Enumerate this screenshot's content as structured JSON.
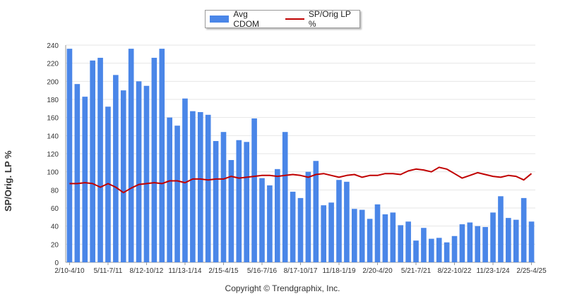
{
  "colors": {
    "bars": "#4a86e8",
    "line": "#c00000",
    "grid": "#e6e6e6",
    "axis": "#9a9a9a"
  },
  "legend": {
    "bar_label": "Avg CDOM",
    "line_label": "SP/Orig LP %"
  },
  "copyright": "Copyright © Trendgraphix, Inc.",
  "chart_data": {
    "type": "bar",
    "title": "",
    "ylabel": "SP/Orig. LP %",
    "xlabel": "",
    "ylim": [
      0,
      240
    ],
    "yticks": [
      0,
      20,
      40,
      60,
      80,
      100,
      120,
      140,
      160,
      180,
      200,
      220,
      240
    ],
    "grid": true,
    "legend_position": "top-center",
    "x_tick_labels": [
      "2/10-4/10",
      "5/11-7/11",
      "8/12-10/12",
      "11/13-1/14",
      "2/15-4/15",
      "5/16-7/16",
      "8/17-10/17",
      "11/18-1/19",
      "2/20-4/20",
      "5/21-7/21",
      "8/22-10/22",
      "11/23-1/24",
      "2/25-4/25"
    ],
    "series": [
      {
        "name": "Avg CDOM",
        "type": "bar",
        "values": [
          236,
          197,
          183,
          223,
          226,
          172,
          207,
          190,
          236,
          200,
          195,
          226,
          236,
          160,
          151,
          181,
          167,
          166,
          163,
          134,
          144,
          113,
          135,
          133,
          159,
          93,
          85,
          103,
          144,
          78,
          71,
          100,
          112,
          63,
          66,
          91,
          89,
          59,
          58,
          48,
          64,
          53,
          55,
          41,
          45,
          24,
          38,
          26,
          27,
          22,
          29,
          42,
          44,
          40,
          39,
          55,
          73,
          49,
          47,
          71,
          45
        ]
      },
      {
        "name": "SP/Orig LP %",
        "type": "line",
        "values": [
          87,
          87,
          88,
          87,
          83,
          87,
          83,
          77,
          82,
          86,
          87,
          88,
          87,
          90,
          90,
          88,
          92,
          92,
          91,
          92,
          92,
          95,
          93,
          94,
          95,
          96,
          96,
          95,
          96,
          97,
          96,
          94,
          97,
          98,
          96,
          94,
          96,
          97,
          94,
          96,
          96,
          98,
          98,
          97,
          101,
          103,
          102,
          100,
          105,
          103,
          98,
          93,
          96,
          99,
          97,
          95,
          94,
          96,
          95,
          91,
          98
        ]
      }
    ]
  }
}
